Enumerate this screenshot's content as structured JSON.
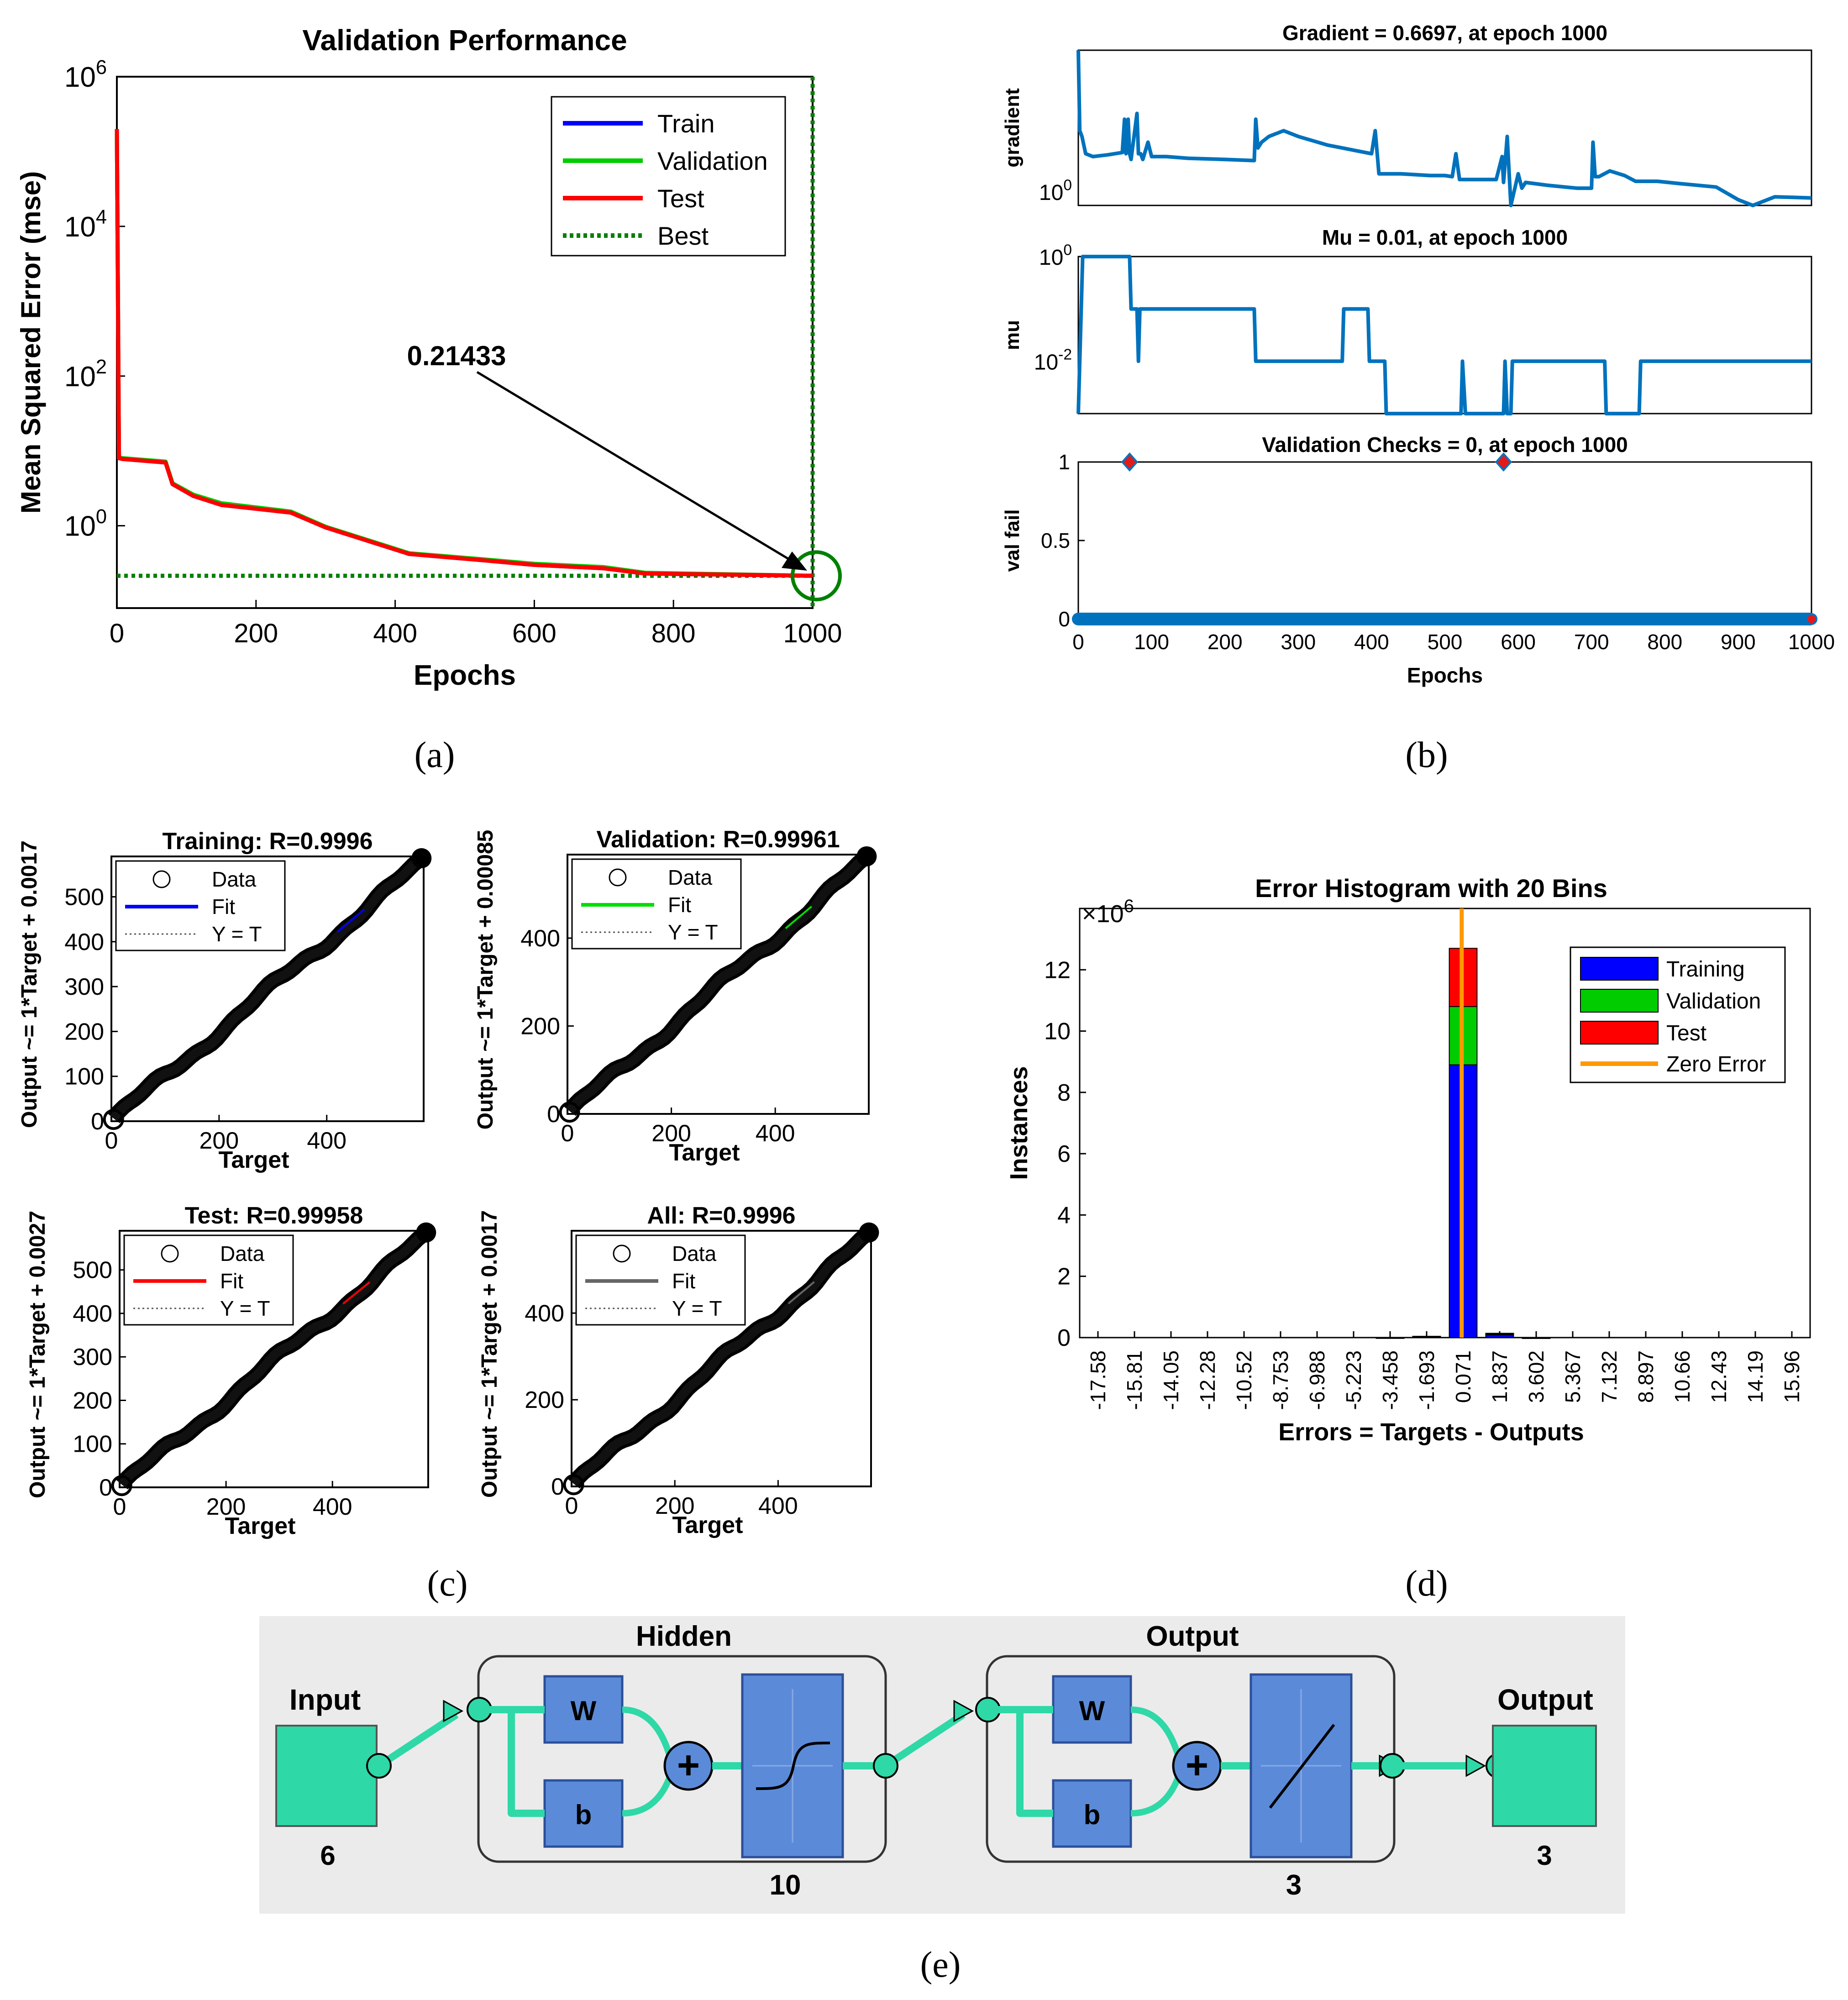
{
  "captions": {
    "a": "(a)",
    "b": "(b)",
    "c": "(c)",
    "d": "(d)",
    "e": "(e)"
  },
  "colors": {
    "train": "#0000ff",
    "validation": "#00cc00",
    "test": "#ff0000",
    "best": "#008000",
    "matlab_blue": "#0072bd",
    "zero": "#ff9900",
    "hist_blue": "#0000ff",
    "hist_green": "#00cc00",
    "hist_red": "#ff0000",
    "nn_green": "#2ed8a7",
    "nn_block": "#5b8bd8"
  },
  "chart_data": [
    {
      "id": "a",
      "type": "line",
      "title": "Validation Performance",
      "xlabel": "Epochs",
      "ylabel": "Mean Squared Error  (mse)",
      "xlim": [
        0,
        1000
      ],
      "ylim_log10": [
        -1.1,
        6
      ],
      "xticks": [
        "0",
        "200",
        "400",
        "600",
        "800",
        "1000"
      ],
      "yticks": [
        {
          "base": "10",
          "exp": "6",
          "v": 6
        },
        {
          "base": "10",
          "exp": "4",
          "v": 4
        },
        {
          "base": "10",
          "exp": "2",
          "v": 2
        },
        {
          "base": "10",
          "exp": "0",
          "v": 0
        }
      ],
      "legend": [
        "Train",
        "Validation",
        "Test",
        "Best"
      ],
      "annotation": "0.21433",
      "best_epoch": 1000,
      "best_value": 0.21433,
      "series": [
        {
          "name": "Train",
          "x": [
            0,
            3,
            8,
            70,
            80,
            110,
            150,
            250,
            300,
            420,
            520,
            600,
            700,
            760,
            1000
          ],
          "y": [
            200000,
            8,
            7.8,
            7.0,
            3.6,
            2.5,
            1.9,
            1.5,
            0.95,
            0.42,
            0.35,
            0.3,
            0.27,
            0.23,
            0.21433
          ]
        },
        {
          "name": "Validation",
          "x": [
            0,
            3,
            8,
            70,
            80,
            110,
            150,
            250,
            300,
            420,
            520,
            600,
            700,
            760,
            1000
          ],
          "y": [
            200000,
            8.2,
            8.0,
            7.2,
            3.7,
            2.6,
            2.0,
            1.55,
            0.97,
            0.43,
            0.36,
            0.31,
            0.28,
            0.235,
            0.21433
          ]
        },
        {
          "name": "Test",
          "x": [
            0,
            3,
            8,
            70,
            80,
            110,
            150,
            250,
            300,
            420,
            520,
            600,
            700,
            760,
            1000
          ],
          "y": [
            200000,
            8,
            7.8,
            7.0,
            3.6,
            2.5,
            1.9,
            1.5,
            0.95,
            0.42,
            0.35,
            0.3,
            0.27,
            0.23,
            0.21433
          ]
        }
      ]
    },
    {
      "id": "b1",
      "type": "line",
      "title": "Gradient = 0.6697, at epoch 1000",
      "ylabel": "gradient",
      "yticks": [
        {
          "base": "10",
          "exp": "0",
          "v": 0
        }
      ],
      "xlim": [
        0,
        1000
      ],
      "ylim_log10": [
        -0.3,
        2.4
      ],
      "x": [
        0,
        2,
        5,
        10,
        20,
        40,
        60,
        63,
        65,
        68,
        70,
        72,
        80,
        82,
        85,
        88,
        95,
        100,
        110,
        120,
        150,
        200,
        240,
        242,
        245,
        250,
        260,
        280,
        300,
        340,
        360,
        380,
        400,
        405,
        410,
        440,
        480,
        500,
        510,
        515,
        520,
        570,
        578,
        580,
        585,
        590,
        600,
        605,
        610,
        640,
        680,
        700,
        702,
        705,
        710,
        725,
        745,
        760,
        790,
        820,
        870,
        900,
        920,
        950,
        1000
      ],
      "y_log10": [
        2.4,
        1.0,
        0.9,
        0.6,
        0.55,
        0.58,
        0.62,
        1.2,
        0.6,
        1.2,
        0.6,
        0.5,
        1.3,
        0.6,
        0.6,
        0.5,
        0.8,
        0.55,
        0.55,
        0.55,
        0.52,
        0.5,
        0.48,
        1.2,
        0.7,
        0.8,
        0.9,
        1.0,
        0.9,
        0.75,
        0.7,
        0.65,
        0.6,
        1.0,
        0.25,
        0.25,
        0.22,
        0.22,
        0.2,
        0.6,
        0.15,
        0.15,
        0.55,
        0.1,
        0.9,
        -0.3,
        0.25,
        0.0,
        0.1,
        0.05,
        0.0,
        0.0,
        0.8,
        0.2,
        0.2,
        0.3,
        0.22,
        0.12,
        0.12,
        0.08,
        0.02,
        -0.2,
        -0.3,
        -0.15,
        -0.17
      ]
    },
    {
      "id": "b2",
      "type": "line",
      "title": "Mu = 0.01, at epoch 1000",
      "ylabel": "mu",
      "yticks": [
        {
          "base": "10",
          "exp": "0",
          "v": 0
        },
        {
          "base": "10",
          "exp": "-2",
          "v": -2
        }
      ],
      "xlim": [
        0,
        1000
      ],
      "ylim_log10": [
        -3,
        0
      ],
      "x": [
        0,
        2,
        4,
        6,
        8,
        70,
        72,
        80,
        82,
        84,
        240,
        242,
        360,
        362,
        395,
        397,
        418,
        420,
        522,
        524,
        528,
        580,
        582,
        585,
        590,
        592,
        718,
        720,
        765,
        767,
        1000
      ],
      "y_log10": [
        -3,
        -2,
        -1,
        0,
        0,
        0,
        -1,
        -1,
        -2,
        -1,
        -1,
        -2,
        -2,
        -1,
        -1,
        -2,
        -2,
        -3,
        -3,
        -2,
        -3,
        -3,
        -2,
        -3,
        -3,
        -2,
        -2,
        -3,
        -3,
        -2,
        -2
      ]
    },
    {
      "id": "b3",
      "type": "scatter",
      "title": "Validation Checks = 0, at epoch 1000",
      "ylabel": "val fail",
      "xlabel": "Epochs",
      "xlim": [
        0,
        1000
      ],
      "ylim": [
        0,
        1
      ],
      "xticks": [
        "0",
        "100",
        "200",
        "300",
        "400",
        "500",
        "600",
        "700",
        "800",
        "900",
        "1000"
      ],
      "yticks": [
        "0",
        "0.5",
        "1"
      ],
      "peaks": [
        {
          "x": 70,
          "y": 1
        },
        {
          "x": 580,
          "y": 1
        }
      ],
      "baseline": 0,
      "final_point": {
        "x": 1000,
        "y": 0
      }
    },
    {
      "id": "c1",
      "type": "scatter",
      "title": "Training: R=0.9996",
      "xlabel": "Target",
      "ylabel": "Output ~= 1*Target + 0.0017",
      "xlim": [
        0,
        580
      ],
      "ylim": [
        0,
        590
      ],
      "xticks": [
        "0",
        "200",
        "400"
      ],
      "yticks": [
        "0",
        "100",
        "200",
        "300",
        "400",
        "500"
      ],
      "legend": [
        "Data",
        "Fit",
        "Y = T"
      ],
      "fit_color": "#0000ff"
    },
    {
      "id": "c2",
      "type": "scatter",
      "title": "Validation: R=0.99961",
      "xlabel": "Target",
      "ylabel": "Output ~= 1*Target + 0.00085",
      "xlim": [
        0,
        580
      ],
      "ylim": [
        0,
        590
      ],
      "xticks": [
        "0",
        "200",
        "400"
      ],
      "yticks": [
        "0",
        "200",
        "400"
      ],
      "legend": [
        "Data",
        "Fit",
        "Y = T"
      ],
      "fit_color": "#00dd00"
    },
    {
      "id": "c3",
      "type": "scatter",
      "title": "Test: R=0.99958",
      "xlabel": "Target",
      "ylabel": "Output ~= 1*Target + 0.0027",
      "xlim": [
        0,
        580
      ],
      "ylim": [
        0,
        590
      ],
      "xticks": [
        "0",
        "200",
        "400"
      ],
      "yticks": [
        "0",
        "100",
        "200",
        "300",
        "400",
        "500"
      ],
      "legend": [
        "Data",
        "Fit",
        "Y = T"
      ],
      "fit_color": "#ff0000"
    },
    {
      "id": "c4",
      "type": "scatter",
      "title": "All: R=0.9996",
      "xlabel": "Target",
      "ylabel": "Output ~= 1*Target + 0.0017",
      "xlim": [
        0,
        580
      ],
      "ylim": [
        0,
        590
      ],
      "xticks": [
        "0",
        "200",
        "400"
      ],
      "yticks": [
        "0",
        "200",
        "400"
      ],
      "legend": [
        "Data",
        "Fit",
        "Y = T"
      ],
      "fit_color": "#666666"
    },
    {
      "id": "d",
      "type": "bar",
      "title": "Error Histogram with 20 Bins",
      "xlabel": "Errors = Targets - Outputs",
      "ylabel": "Instances",
      "y_multiplier": "×10",
      "y_multiplier_exp": "6",
      "ylim": [
        0,
        14
      ],
      "yticks": [
        "0",
        "2",
        "4",
        "6",
        "8",
        "10",
        "12"
      ],
      "categories": [
        "-17.58",
        "-15.81",
        "-14.05",
        "-12.28",
        "-10.52",
        "-8.753",
        "-6.988",
        "-5.223",
        "-3.458",
        "-1.693",
        "0.071",
        "1.837",
        "3.602",
        "5.367",
        "7.132",
        "8.897",
        "10.66",
        "12.43",
        "14.19",
        "15.96"
      ],
      "series": [
        {
          "name": "Training",
          "values": [
            0,
            0,
            0,
            0,
            0,
            0,
            0,
            0,
            0.005,
            0.03,
            8.9,
            0.1,
            0.003,
            0,
            0,
            0,
            0,
            0,
            0,
            0
          ]
        },
        {
          "name": "Validation",
          "values": [
            0,
            0,
            0,
            0,
            0,
            0,
            0,
            0,
            0.001,
            0.006,
            1.9,
            0.02,
            0.001,
            0,
            0,
            0,
            0,
            0,
            0,
            0
          ]
        },
        {
          "name": "Test",
          "values": [
            0,
            0,
            0,
            0,
            0,
            0,
            0,
            0,
            0.001,
            0.006,
            1.9,
            0.02,
            0.001,
            0,
            0,
            0,
            0,
            0,
            0,
            0
          ]
        }
      ],
      "zero_error": 0,
      "legend": [
        "Training",
        "Validation",
        "Test",
        "Zero Error"
      ]
    }
  ],
  "network": {
    "input_label": "Input",
    "input_size": "6",
    "hidden_label": "Hidden",
    "hidden_size": "10",
    "output_layer_label": "Output",
    "output_layer_size": "3",
    "output_label": "Output",
    "output_size": "3",
    "w": "W",
    "b": "b"
  }
}
